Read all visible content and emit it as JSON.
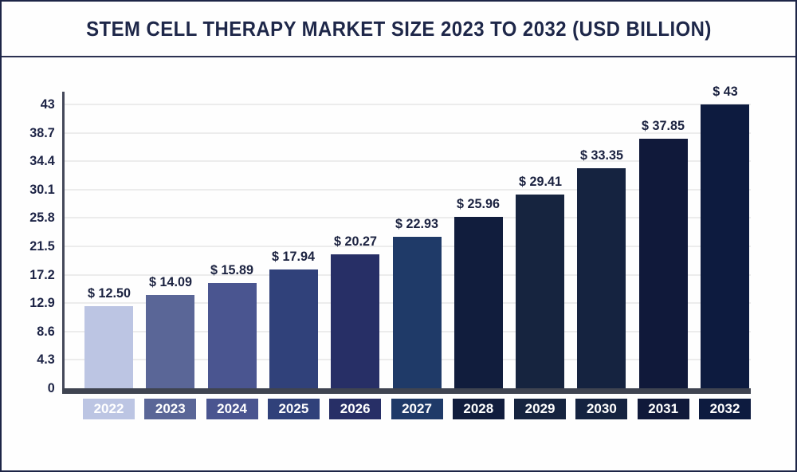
{
  "title": "STEM CELL THERAPY MARKET SIZE 2023 TO 2032 (USD BILLION)",
  "chart_data": {
    "type": "bar",
    "title": "Stem Cell Therapy Market Size 2023 to 2032 (USD Billion)",
    "categories": [
      "2022",
      "2023",
      "2024",
      "2025",
      "2026",
      "2027",
      "2028",
      "2029",
      "2030",
      "2031",
      "2032"
    ],
    "values": [
      12.5,
      14.09,
      15.89,
      17.94,
      20.27,
      22.93,
      25.96,
      29.41,
      33.35,
      37.85,
      43
    ],
    "value_labels": [
      "$ 12.50",
      "$ 14.09",
      "$ 15.89",
      "$ 17.94",
      "$ 20.27",
      "$ 22.93",
      "$ 25.96",
      "$ 29.41",
      "$ 33.35",
      "$ 37.85",
      "$ 43"
    ],
    "bar_colors": [
      "#bcc5e3",
      "#5a6697",
      "#4a5590",
      "#30417a",
      "#272f66",
      "#1f3a68",
      "#111d3d",
      "#16243f",
      "#152340",
      "#10193a",
      "#0d1b3f"
    ],
    "xlabel": "",
    "ylabel": "",
    "ylim": [
      0,
      43
    ],
    "yticks": [
      0,
      4.3,
      8.6,
      12.9,
      17.2,
      21.5,
      25.8,
      30.1,
      34.4,
      38.7,
      43
    ],
    "ytick_labels": [
      "0",
      "4.3",
      "8.6",
      "12.9",
      "17.2",
      "21.5",
      "25.8",
      "30.1",
      "34.4",
      "38.7",
      "43"
    ],
    "grid": "horizontal",
    "legend_position": "none",
    "value_label_prefix": "$"
  },
  "style": {
    "gridline_color": "#ececec",
    "axis_color": "#3f4451",
    "tick_text_color": "#1c2345",
    "value_text_color": "#1b2240",
    "title_color": "#1e2749",
    "border_color": "#1d2547",
    "background": "#fefefe"
  }
}
